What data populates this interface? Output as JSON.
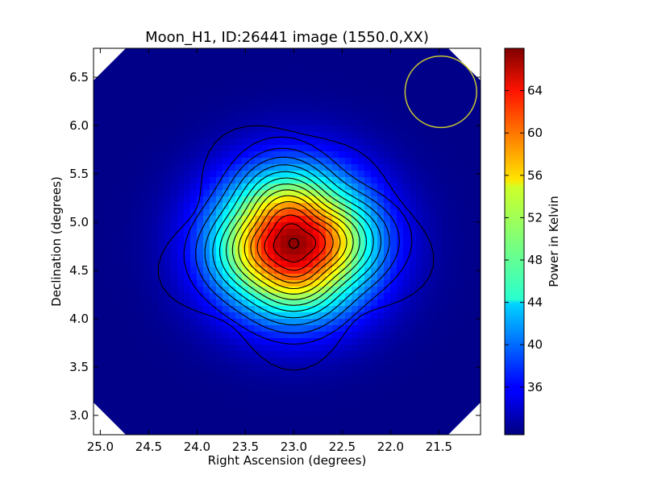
{
  "chart_data": {
    "type": "heatmap",
    "title": "Moon_H1, ID:26441 image (1550.0,XX)",
    "xlabel": "Right Ascension (degrees)",
    "ylabel": "Declination (degrees)",
    "xlim": [
      25.07,
      21.07
    ],
    "ylim": [
      2.8,
      6.8
    ],
    "x_axis_inverted": true,
    "x_ticks": [
      25.0,
      24.5,
      24.0,
      23.5,
      23.0,
      22.5,
      22.0,
      21.5
    ],
    "x_tick_labels": [
      "25.0",
      "24.5",
      "24.0",
      "23.5",
      "23.0",
      "22.5",
      "22.0",
      "21.5"
    ],
    "y_ticks": [
      3.0,
      3.5,
      4.0,
      4.5,
      5.0,
      5.5,
      6.0,
      6.5
    ],
    "y_tick_labels": [
      "3.0",
      "3.5",
      "4.0",
      "4.5",
      "5.0",
      "5.5",
      "6.0",
      "6.5"
    ],
    "colormap": "jet",
    "colorbar": {
      "label": "Power in Kelvin",
      "range": [
        31.5,
        68
      ],
      "ticks": [
        36,
        40,
        44,
        48,
        52,
        56,
        60,
        64
      ],
      "tick_labels": [
        "36",
        "40",
        "44",
        "48",
        "52",
        "56",
        "60",
        "64"
      ]
    },
    "peak": {
      "ra": 23.0,
      "dec": 4.78,
      "value": 67.5
    },
    "background_value": 31.8,
    "source_spread_deg": {
      "ra": 0.55,
      "dec": 0.5
    },
    "contour_lines": 14,
    "contour_color": "#000000",
    "beam_marker": {
      "ra": 21.48,
      "dec": 6.35,
      "radius_deg": 0.37,
      "color": "#c8c832"
    },
    "peak_marker": {
      "ra": 23.0,
      "dec": 4.78,
      "shape": "circle"
    },
    "blank_corners": true
  }
}
